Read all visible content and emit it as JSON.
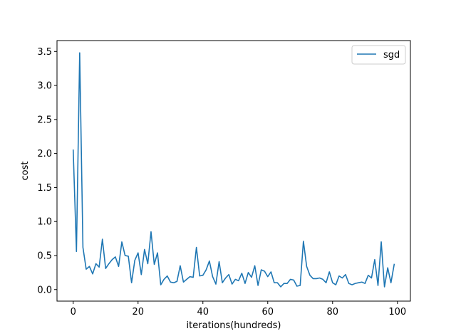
{
  "chart_data": {
    "type": "line",
    "xlabel": "iterations(hundreds)",
    "ylabel": "cost",
    "xlim": [
      -5,
      104
    ],
    "ylim": [
      -0.17,
      3.66
    ],
    "xticks": [
      0,
      20,
      40,
      60,
      80,
      100
    ],
    "xtick_labels": [
      "0",
      "20",
      "40",
      "60",
      "80",
      "100"
    ],
    "yticks": [
      0.0,
      0.5,
      1.0,
      1.5,
      2.0,
      2.5,
      3.0,
      3.5
    ],
    "ytick_labels": [
      "0.0",
      "0.5",
      "1.0",
      "1.5",
      "2.0",
      "2.5",
      "3.0",
      "3.5"
    ],
    "grid": false,
    "legend_position": "top-right",
    "series": [
      {
        "name": "sgd",
        "color": "#1f77b4",
        "values": [
          2.05,
          0.56,
          3.48,
          0.62,
          0.3,
          0.34,
          0.23,
          0.38,
          0.33,
          0.74,
          0.31,
          0.38,
          0.44,
          0.48,
          0.34,
          0.7,
          0.5,
          0.49,
          0.1,
          0.43,
          0.54,
          0.22,
          0.59,
          0.38,
          0.85,
          0.37,
          0.54,
          0.07,
          0.15,
          0.2,
          0.11,
          0.1,
          0.12,
          0.35,
          0.11,
          0.15,
          0.19,
          0.18,
          0.62,
          0.2,
          0.21,
          0.29,
          0.42,
          0.19,
          0.08,
          0.41,
          0.1,
          0.17,
          0.22,
          0.08,
          0.15,
          0.13,
          0.24,
          0.09,
          0.25,
          0.18,
          0.35,
          0.06,
          0.29,
          0.27,
          0.19,
          0.26,
          0.1,
          0.1,
          0.04,
          0.09,
          0.09,
          0.15,
          0.14,
          0.05,
          0.06,
          0.71,
          0.34,
          0.21,
          0.16,
          0.16,
          0.17,
          0.15,
          0.1,
          0.26,
          0.1,
          0.07,
          0.2,
          0.17,
          0.22,
          0.09,
          0.07,
          0.09,
          0.1,
          0.11,
          0.09,
          0.21,
          0.17,
          0.44,
          0.06,
          0.7,
          0.04,
          0.32,
          0.1,
          0.37
        ]
      }
    ]
  }
}
